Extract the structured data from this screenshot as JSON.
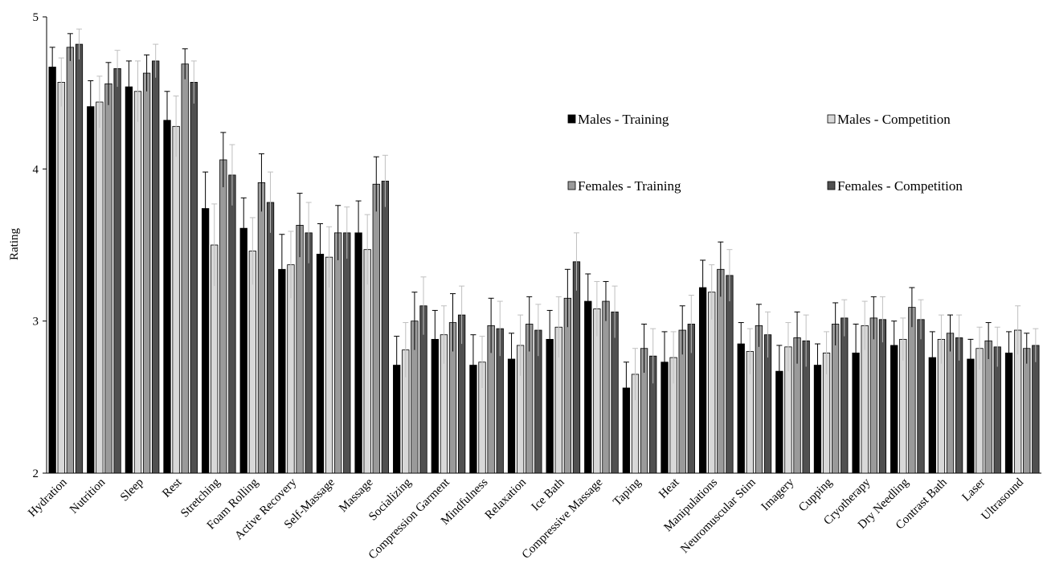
{
  "chart_data": {
    "type": "bar",
    "title": "",
    "xlabel": "",
    "ylabel": "Rating",
    "ylim": [
      2,
      5
    ],
    "yticks": [
      2,
      3,
      4,
      5
    ],
    "grid": false,
    "error_bars": true,
    "legend_placement": "upper-right, two columns",
    "categories": [
      "Hydration",
      "Nutrition",
      "Sleep",
      "Rest",
      "Stretching",
      "Foam Rolling",
      "Active Recovery",
      "Self-Massage",
      "Massage",
      "Socializing",
      "Compression Garment",
      "Mindfulness",
      "Relaxation",
      "Ice Bath",
      "Compressive Massage",
      "Taping",
      "Heat",
      "Manipulations",
      "Neuromuscular Stim",
      "Imagery",
      "Cupping",
      "Cryotherapy",
      "Dry Needling",
      "Contrast Bath",
      "Laser",
      "Ultrasound"
    ],
    "series": [
      {
        "name": "Males - Training",
        "color": "#000000",
        "values": [
          4.67,
          4.41,
          4.54,
          4.32,
          3.74,
          3.61,
          3.34,
          3.44,
          3.58,
          2.71,
          2.88,
          2.71,
          2.75,
          2.88,
          3.13,
          2.56,
          2.73,
          3.22,
          2.85,
          2.67,
          2.71,
          2.79,
          2.84,
          2.76,
          2.75,
          2.79
        ],
        "errors": [
          0.13,
          0.17,
          0.17,
          0.19,
          0.24,
          0.2,
          0.23,
          0.2,
          0.21,
          0.19,
          0.19,
          0.2,
          0.17,
          0.19,
          0.18,
          0.17,
          0.2,
          0.18,
          0.14,
          0.17,
          0.14,
          0.19,
          0.16,
          0.17,
          0.13,
          0.14
        ]
      },
      {
        "name": "Males - Competition",
        "color": "#d8d8d8",
        "values": [
          4.57,
          4.44,
          4.51,
          4.28,
          3.5,
          3.46,
          3.37,
          3.42,
          3.47,
          2.81,
          2.91,
          2.73,
          2.84,
          2.96,
          3.08,
          2.65,
          2.76,
          3.19,
          2.8,
          2.83,
          2.79,
          2.97,
          2.88,
          2.88,
          2.82,
          2.94
        ],
        "errors": [
          0.16,
          0.17,
          0.2,
          0.2,
          0.27,
          0.22,
          0.22,
          0.2,
          0.23,
          0.18,
          0.19,
          0.17,
          0.2,
          0.2,
          0.18,
          0.17,
          0.17,
          0.18,
          0.15,
          0.16,
          0.14,
          0.16,
          0.14,
          0.16,
          0.14,
          0.16
        ]
      },
      {
        "name": "Females - Training",
        "color": "#9a9a9a",
        "values": [
          4.8,
          4.56,
          4.63,
          4.69,
          4.06,
          3.91,
          3.63,
          3.58,
          3.9,
          3.0,
          2.99,
          2.97,
          2.98,
          3.15,
          3.13,
          2.82,
          2.94,
          3.34,
          2.97,
          2.89,
          2.98,
          3.02,
          3.09,
          2.92,
          2.87,
          2.82
        ],
        "errors": [
          0.09,
          0.14,
          0.12,
          0.1,
          0.18,
          0.19,
          0.21,
          0.18,
          0.18,
          0.19,
          0.19,
          0.18,
          0.18,
          0.19,
          0.13,
          0.16,
          0.16,
          0.18,
          0.14,
          0.17,
          0.14,
          0.14,
          0.13,
          0.12,
          0.12,
          0.1
        ]
      },
      {
        "name": "Females - Competition",
        "color": "#505050",
        "values": [
          4.82,
          4.66,
          4.71,
          4.57,
          3.96,
          3.78,
          3.58,
          3.58,
          3.92,
          3.1,
          3.04,
          2.95,
          2.94,
          3.39,
          3.06,
          2.77,
          2.98,
          3.3,
          2.91,
          2.87,
          3.02,
          3.01,
          3.01,
          2.89,
          2.83,
          2.84
        ],
        "errors": [
          0.1,
          0.12,
          0.11,
          0.14,
          0.2,
          0.2,
          0.2,
          0.17,
          0.17,
          0.19,
          0.19,
          0.18,
          0.17,
          0.19,
          0.17,
          0.18,
          0.19,
          0.17,
          0.15,
          0.17,
          0.12,
          0.15,
          0.13,
          0.15,
          0.13,
          0.11
        ]
      }
    ]
  }
}
